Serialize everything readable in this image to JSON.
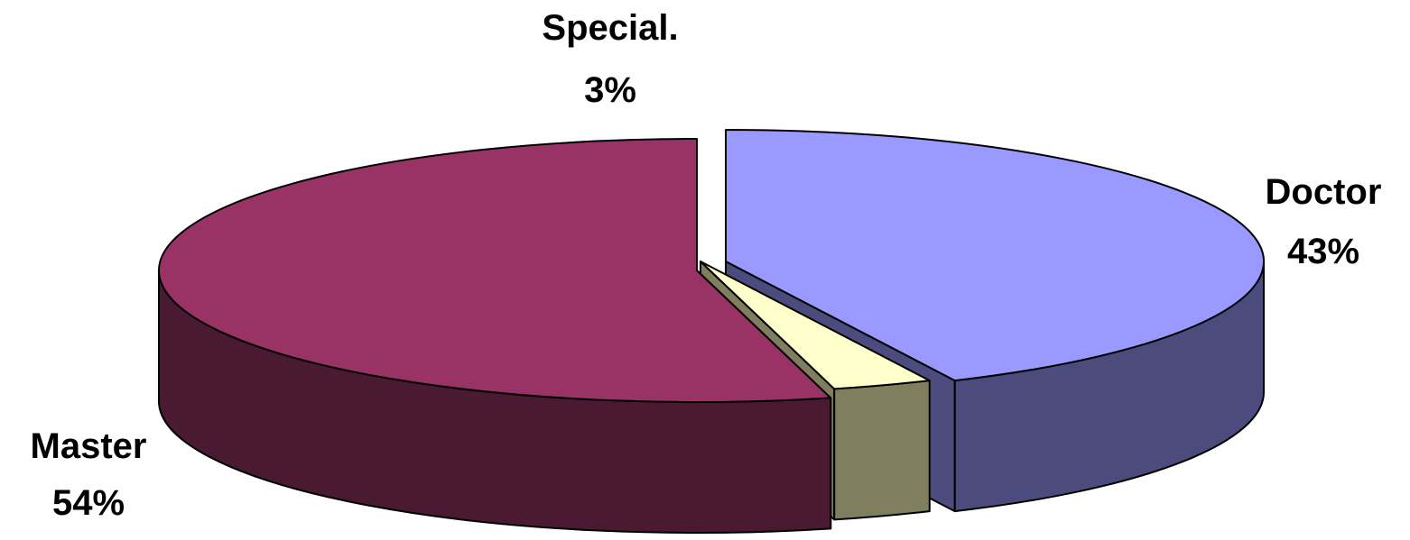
{
  "chart_data": {
    "type": "pie",
    "title": "",
    "categories": [
      "Doctor",
      "Special.",
      "Master"
    ],
    "values": [
      43,
      3,
      54
    ],
    "labels": [
      "43%",
      "3%",
      "54%"
    ],
    "legend": "none",
    "exploded": true,
    "three_d": true,
    "slices": [
      {
        "name": "Doctor",
        "value": 43,
        "label": "43%",
        "top_color": "#9999ff",
        "side_color": "#4b4b7d"
      },
      {
        "name": "Special.",
        "value": 3,
        "label": "3%",
        "top_color": "#ffffcc",
        "side_color": "#7f7f5f"
      },
      {
        "name": "Master",
        "value": 54,
        "label": "54%",
        "top_color": "#993366",
        "side_color": "#4a1932"
      }
    ]
  }
}
